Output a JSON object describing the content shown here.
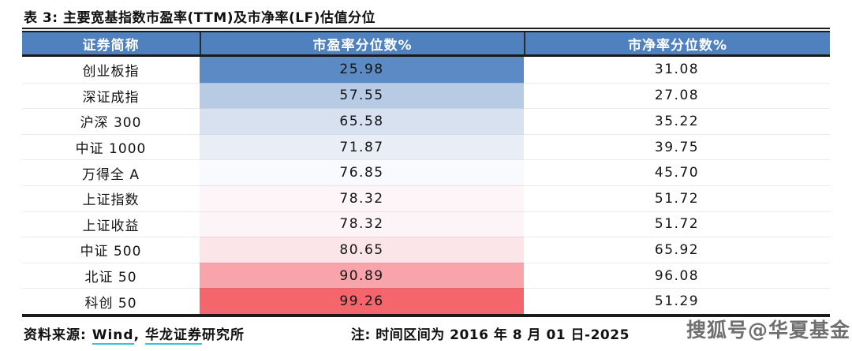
{
  "title": "表 3: 主要宽基指数市盈率(TTM)及市净率(LF)估值分位",
  "colors": {
    "header_bg": "#4e81bd",
    "header_text": "#ffffff",
    "border": "#1b1b1b",
    "link_underline": "#35c3dc",
    "watermark_text": "#6f6f6f",
    "heat_low": "#5b8ac5",
    "heat_high": "#f5656c"
  },
  "table": {
    "columns": [
      "证券简称",
      "市盈率分位数%",
      "市净率分位数%"
    ],
    "rows": [
      {
        "name": "创业板指",
        "pe": "25.98",
        "pb": "31.08",
        "pe_color": "#5b8ac5"
      },
      {
        "name": "深证成指",
        "pe": "57.55",
        "pb": "27.08",
        "pe_color": "#b8cbe5"
      },
      {
        "name": "沪深 300",
        "pe": "65.58",
        "pb": "35.22",
        "pe_color": "#d7e1f0"
      },
      {
        "name": "中证 1000",
        "pe": "71.87",
        "pb": "39.75",
        "pe_color": "#e8edf6"
      },
      {
        "name": "万得全 A",
        "pe": "76.85",
        "pb": "45.70",
        "pe_color": "#f8fafd"
      },
      {
        "name": "上证指数",
        "pe": "78.32",
        "pb": "51.72",
        "pe_color": "#fdf5f8"
      },
      {
        "name": "上证收益",
        "pe": "78.32",
        "pb": "51.72",
        "pe_color": "#fdf4f7"
      },
      {
        "name": "中证 500",
        "pe": "80.65",
        "pb": "65.92",
        "pe_color": "#fbe5e8"
      },
      {
        "name": "北证 50",
        "pe": "90.89",
        "pb": "96.08",
        "pe_color": "#f9a3ab"
      },
      {
        "name": "科创 50",
        "pe": "99.26",
        "pb": "51.29",
        "pe_color": "#f5656c"
      }
    ]
  },
  "footer": {
    "source_prefix": "资料来源: ",
    "source_link1": "Wind",
    "source_sep": ", ",
    "source_link2": "华龙证券",
    "source_suffix": "研究所",
    "note": "注: 时间区间为 2016 年 8 月 01 日-2025",
    "watermark": "搜狐号@华夏基金"
  }
}
